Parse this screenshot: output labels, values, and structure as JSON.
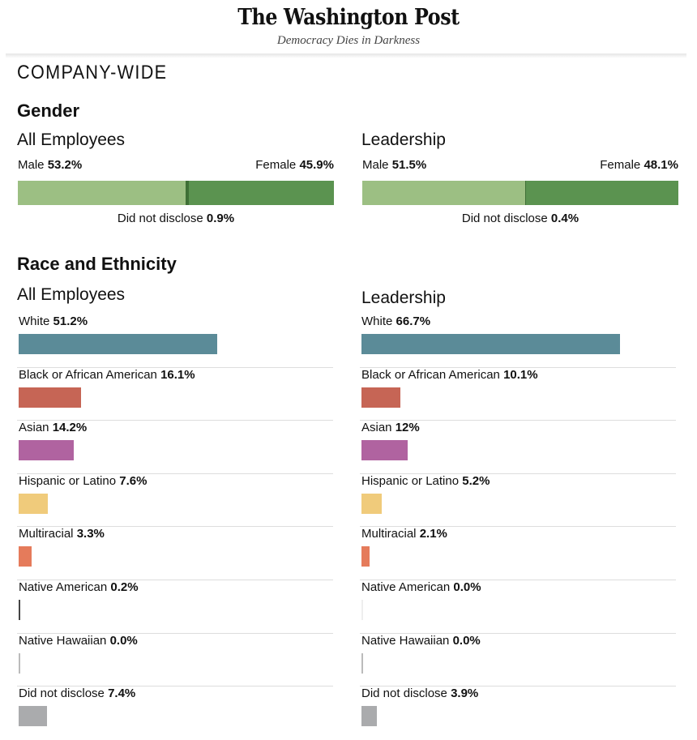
{
  "masthead": {
    "logo": "The Washington Post",
    "tagline": "Democracy Dies in Darkness"
  },
  "section_title": "COMPANY-WIDE",
  "gender": {
    "title": "Gender",
    "groups": [
      {
        "title": "All Employees",
        "male_label": "Male",
        "male": "53.2%",
        "female_label": "Female",
        "female": "45.9%",
        "nd_label": "Did not disclose",
        "nd": "0.9%"
      },
      {
        "title": "Leadership",
        "male_label": "Male",
        "male": "51.5%",
        "female_label": "Female",
        "female": "48.1%",
        "nd_label": "Did not disclose",
        "nd": "0.4%"
      }
    ]
  },
  "race": {
    "title": "Race and Ethnicity",
    "groups": [
      "All Employees",
      "Leadership"
    ]
  },
  "colors": {
    "male": "#9cbf83",
    "female": "#5b9350",
    "nd_gender": "#3f7036"
  },
  "chart_data": [
    {
      "type": "bar",
      "title": "All Employees",
      "categories": [
        "White",
        "Black or African American",
        "Asian",
        "Hispanic or Latino",
        "Multiracial",
        "Native American",
        "Native Hawaiian",
        "Did not disclose"
      ],
      "values": [
        51.2,
        16.1,
        14.2,
        7.6,
        3.3,
        0.2,
        0.0,
        7.4
      ],
      "labels": [
        "51.2%",
        "16.1%",
        "14.2%",
        "7.6%",
        "3.3%",
        "0.2%",
        "0.0%",
        "7.4%"
      ],
      "colors": [
        "#5b8b98",
        "#c66555",
        "#b063a0",
        "#f0cb7b",
        "#e57b5b",
        "#444444",
        "#bbbbbb",
        "#aaabad"
      ]
    },
    {
      "type": "bar",
      "title": "Leadership",
      "categories": [
        "White",
        "Black or African American",
        "Asian",
        "Hispanic or Latino",
        "Multiracial",
        "Native American",
        "Native Hawaiian",
        "Did not disclose"
      ],
      "values": [
        66.7,
        10.1,
        12,
        5.2,
        2.1,
        0.0,
        0.0,
        3.9
      ],
      "labels": [
        "66.7%",
        "10.1%",
        "12%",
        "5.2%",
        "2.1%",
        "0.0%",
        "0.0%",
        "3.9%"
      ],
      "colors": [
        "#5b8b98",
        "#c66555",
        "#b063a0",
        "#f0cb7b",
        "#e57b5b",
        "#eeeeee",
        "#bbbbbb",
        "#aaabad"
      ]
    }
  ]
}
